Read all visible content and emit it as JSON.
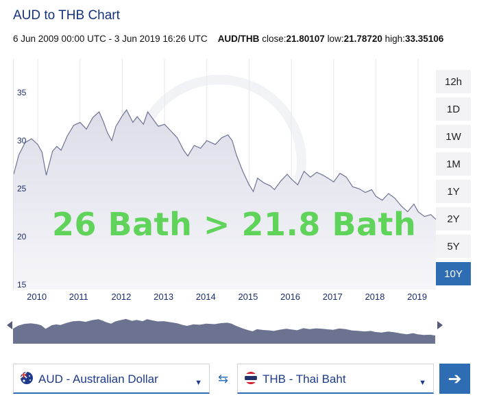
{
  "header": {
    "title": "AUD to THB Chart",
    "date_range": "6 Jun 2009 00:00 UTC - 3 Jun 2019 16:26 UTC",
    "pair": "AUD/THB",
    "close_label": "close:",
    "close_value": "21.80107",
    "low_label": "low:",
    "low_value": "21.78720",
    "high_label": "high:",
    "high_value": "33.35106"
  },
  "annotation": {
    "text": "26 Bath > 21.8 Bath"
  },
  "ranges": [
    {
      "label": "12h",
      "active": false
    },
    {
      "label": "1D",
      "active": false
    },
    {
      "label": "1W",
      "active": false
    },
    {
      "label": "1M",
      "active": false
    },
    {
      "label": "1Y",
      "active": false
    },
    {
      "label": "2Y",
      "active": false
    },
    {
      "label": "5Y",
      "active": false
    },
    {
      "label": "10Y",
      "active": true
    }
  ],
  "converter": {
    "from_label": "AUD - Australian Dollar",
    "to_label": "THB - Thai Baht",
    "swap_icon": "swap-arrows-icon",
    "go_icon": "arrow-right-icon"
  },
  "colors": {
    "accent": "#2e6db3",
    "line": "#6e7395",
    "area": "#e6e7ee",
    "nav_area": "#6b7391"
  },
  "chart_data": {
    "type": "area",
    "title": "",
    "xlabel": "",
    "ylabel": "",
    "y_ticks": [
      "15",
      "20",
      "25",
      "30",
      "35"
    ],
    "ylim": [
      14.5,
      38.5
    ],
    "x_ticks": [
      "2010",
      "2011",
      "2012",
      "2013",
      "2014",
      "2015",
      "2016",
      "2017",
      "2018",
      "2019"
    ],
    "x_tick_values": [
      2010,
      2011,
      2012,
      2013,
      2014,
      2015,
      2016,
      2017,
      2018,
      2019
    ],
    "xlim": [
      2009.43,
      2019.42
    ],
    "grid": true,
    "legend": "none",
    "series": [
      {
        "x": [
          2009.43,
          2009.55,
          2009.7,
          2009.85,
          2010.0,
          2010.1,
          2010.2,
          2010.35,
          2010.45,
          2010.55,
          2010.7,
          2010.85,
          2011.0,
          2011.15,
          2011.3,
          2011.45,
          2011.55,
          2011.65,
          2011.75,
          2011.85,
          2012.0,
          2012.1,
          2012.25,
          2012.35,
          2012.5,
          2012.6,
          2012.7,
          2012.85,
          2013.0,
          2013.15,
          2013.3,
          2013.45,
          2013.55,
          2013.7,
          2013.85,
          2014.0,
          2014.1,
          2014.2,
          2014.35,
          2014.5,
          2014.6,
          2014.7,
          2014.85,
          2015.0,
          2015.1,
          2015.2,
          2015.35,
          2015.5,
          2015.6,
          2015.75,
          2015.9,
          2016.0,
          2016.15,
          2016.3,
          2016.45,
          2016.6,
          2016.75,
          2016.9,
          2017.0,
          2017.15,
          2017.3,
          2017.45,
          2017.6,
          2017.75,
          2017.9,
          2018.0,
          2018.15,
          2018.3,
          2018.45,
          2018.6,
          2018.75,
          2018.9,
          2019.0,
          2019.15,
          2019.3,
          2019.42
        ],
        "y": [
          26.5,
          28.5,
          29.8,
          30.2,
          29.6,
          28.8,
          26.4,
          28.9,
          29.4,
          29.0,
          30.5,
          31.6,
          31.9,
          31.2,
          32.4,
          33.0,
          32.0,
          30.8,
          30.0,
          31.5,
          32.6,
          33.2,
          31.9,
          32.5,
          31.7,
          33.0,
          32.4,
          31.5,
          31.7,
          31.0,
          30.3,
          29.0,
          28.4,
          29.5,
          29.2,
          30.0,
          29.8,
          29.6,
          30.3,
          30.6,
          30.0,
          28.5,
          26.8,
          25.4,
          24.7,
          26.1,
          25.6,
          25.3,
          24.9,
          25.8,
          26.5,
          26.0,
          25.4,
          26.8,
          26.2,
          26.7,
          26.4,
          26.0,
          25.7,
          26.6,
          26.2,
          25.2,
          25.0,
          24.6,
          24.9,
          24.2,
          23.8,
          24.5,
          24.0,
          23.2,
          22.6,
          23.4,
          22.6,
          22.1,
          22.3,
          21.8
        ]
      }
    ]
  }
}
